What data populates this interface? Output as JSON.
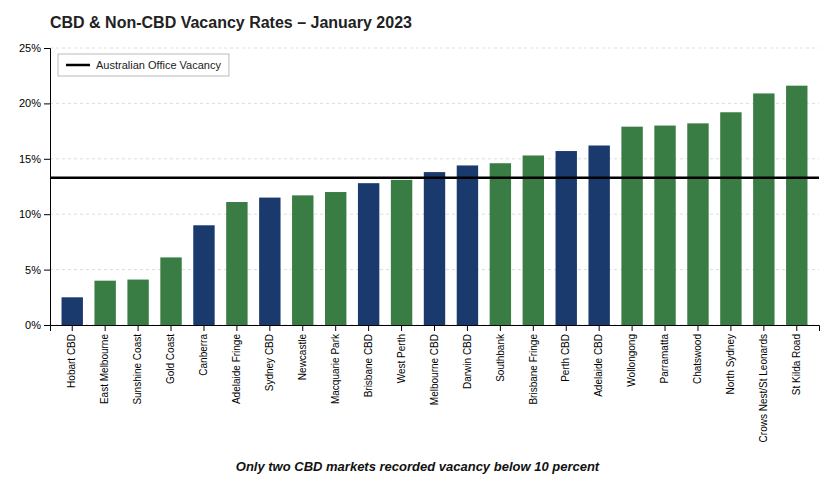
{
  "chart_data": {
    "type": "bar",
    "title": "CBD & Non-CBD Vacancy Rates – January 2023",
    "subtitle": "Only two CBD markets recorded vacancy below 10 percent",
    "categories": [
      "Hobart CBD",
      "East Melbourne",
      "Sunshine Coast",
      "Gold Coast",
      "Canberra",
      "Adelaide Fringe",
      "Sydney CBD",
      "Newcastle",
      "Macquarie Park",
      "Brisbane CBD",
      "West Perth",
      "Melbourne CBD",
      "Darwin CBD",
      "Southbank",
      "Brisbane Fringe",
      "Perth CBD",
      "Adelaide CBD",
      "Wollongong",
      "Parramatta",
      "Chatswood",
      "North Sydney",
      "Crows Nest/St Leonards",
      "St Kilda Road"
    ],
    "values": [
      2.5,
      4.0,
      4.1,
      6.1,
      9.0,
      11.1,
      11.5,
      11.7,
      12.0,
      12.8,
      13.1,
      13.8,
      14.4,
      14.6,
      15.3,
      15.7,
      16.2,
      17.9,
      18.0,
      18.2,
      19.2,
      20.9,
      21.6
    ],
    "colors": [
      "#1a3a6e",
      "#3a7d44",
      "#3a7d44",
      "#3a7d44",
      "#1a3a6e",
      "#3a7d44",
      "#1a3a6e",
      "#3a7d44",
      "#3a7d44",
      "#1a3a6e",
      "#3a7d44",
      "#1a3a6e",
      "#1a3a6e",
      "#3a7d44",
      "#3a7d44",
      "#1a3a6e",
      "#1a3a6e",
      "#3a7d44",
      "#3a7d44",
      "#3a7d44",
      "#3a7d44",
      "#3a7d44",
      "#3a7d44"
    ],
    "reference_line": {
      "name": "Australian Office Vacancy",
      "value": 13.3,
      "color": "#000000"
    },
    "ylim": [
      0,
      25
    ],
    "yticks": [
      {
        "value": 0,
        "label": "0%"
      },
      {
        "value": 5,
        "label": "5%"
      },
      {
        "value": 10,
        "label": "10%"
      },
      {
        "value": 15,
        "label": "15%"
      },
      {
        "value": 20,
        "label": "20%"
      },
      {
        "value": 25,
        "label": "25%"
      }
    ],
    "grid": true,
    "legend": "upper left"
  }
}
